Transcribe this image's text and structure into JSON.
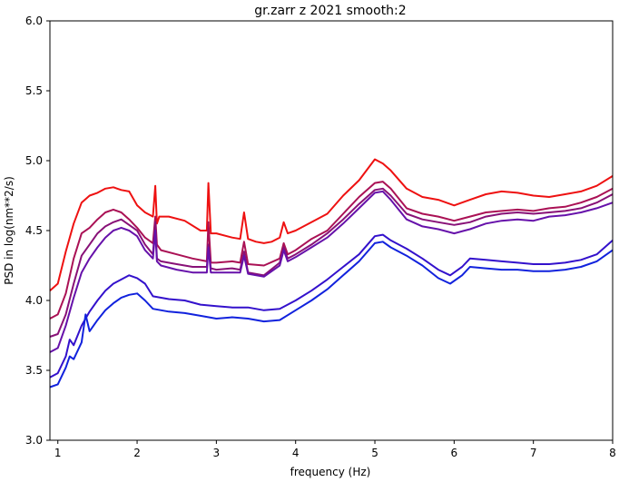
{
  "chart_data": {
    "type": "line",
    "title": "gr.zarr z 2021 smooth:2",
    "xlabel": "frequency (Hz)",
    "ylabel": "PSD in log(nm**2/s)",
    "xlim": [
      0.9,
      8.0
    ],
    "ylim": [
      3.0,
      6.0
    ],
    "xticks": [
      "1",
      "2",
      "3",
      "4",
      "5",
      "6",
      "7",
      "8"
    ],
    "yticks": [
      "3.0",
      "3.5",
      "4.0",
      "4.5",
      "5.0",
      "5.5",
      "6.0"
    ],
    "grid": false,
    "legend": "none",
    "series": [
      {
        "color": "#ee1111",
        "x": [
          0.9,
          1.0,
          1.1,
          1.2,
          1.3,
          1.4,
          1.5,
          1.6,
          1.7,
          1.8,
          1.9,
          2.0,
          2.1,
          2.2,
          2.23,
          2.25,
          2.28,
          2.4,
          2.6,
          2.8,
          2.88,
          2.9,
          2.93,
          3.0,
          3.2,
          3.3,
          3.35,
          3.4,
          3.5,
          3.6,
          3.7,
          3.8,
          3.85,
          3.9,
          4.0,
          4.2,
          4.4,
          4.6,
          4.8,
          5.0,
          5.1,
          5.2,
          5.4,
          5.6,
          5.8,
          6.0,
          6.2,
          6.4,
          6.6,
          6.8,
          7.0,
          7.2,
          7.4,
          7.6,
          7.8,
          8.0
        ],
        "y": [
          4.07,
          4.12,
          4.35,
          4.55,
          4.7,
          4.75,
          4.77,
          4.8,
          4.81,
          4.79,
          4.78,
          4.68,
          4.63,
          4.6,
          4.82,
          4.55,
          4.6,
          4.6,
          4.57,
          4.5,
          4.5,
          4.84,
          4.48,
          4.48,
          4.45,
          4.44,
          4.63,
          4.44,
          4.42,
          4.41,
          4.42,
          4.45,
          4.56,
          4.48,
          4.5,
          4.56,
          4.62,
          4.75,
          4.86,
          5.01,
          4.98,
          4.93,
          4.8,
          4.74,
          4.72,
          4.68,
          4.72,
          4.76,
          4.78,
          4.77,
          4.75,
          4.74,
          4.76,
          4.78,
          4.82,
          4.89
        ]
      },
      {
        "color": "#aa1155",
        "x": [
          0.9,
          1.0,
          1.1,
          1.2,
          1.3,
          1.4,
          1.5,
          1.6,
          1.7,
          1.8,
          1.9,
          2.0,
          2.1,
          2.2,
          2.23,
          2.25,
          2.3,
          2.5,
          2.7,
          2.88,
          2.9,
          2.93,
          3.0,
          3.2,
          3.3,
          3.35,
          3.4,
          3.6,
          3.8,
          3.85,
          3.9,
          4.0,
          4.2,
          4.4,
          4.6,
          4.8,
          5.0,
          5.1,
          5.2,
          5.4,
          5.6,
          5.8,
          6.0,
          6.2,
          6.4,
          6.6,
          6.8,
          7.0,
          7.2,
          7.4,
          7.6,
          7.8,
          8.0
        ],
        "y": [
          3.87,
          3.9,
          4.05,
          4.3,
          4.48,
          4.52,
          4.58,
          4.63,
          4.65,
          4.63,
          4.58,
          4.52,
          4.45,
          4.41,
          4.6,
          4.4,
          4.36,
          4.33,
          4.3,
          4.28,
          4.56,
          4.27,
          4.27,
          4.28,
          4.27,
          4.42,
          4.26,
          4.25,
          4.3,
          4.41,
          4.33,
          4.36,
          4.44,
          4.5,
          4.62,
          4.74,
          4.84,
          4.85,
          4.8,
          4.66,
          4.62,
          4.6,
          4.57,
          4.6,
          4.63,
          4.64,
          4.65,
          4.64,
          4.66,
          4.67,
          4.7,
          4.74,
          4.8
        ]
      },
      {
        "color": "#881177",
        "x": [
          0.9,
          1.0,
          1.1,
          1.2,
          1.3,
          1.4,
          1.5,
          1.6,
          1.7,
          1.8,
          1.9,
          2.0,
          2.1,
          2.2,
          2.23,
          2.25,
          2.3,
          2.5,
          2.7,
          2.88,
          2.9,
          2.93,
          3.0,
          3.2,
          3.3,
          3.35,
          3.4,
          3.6,
          3.8,
          3.85,
          3.9,
          4.0,
          4.2,
          4.4,
          4.6,
          4.8,
          5.0,
          5.1,
          5.2,
          5.4,
          5.6,
          5.8,
          6.0,
          6.2,
          6.4,
          6.6,
          6.8,
          7.0,
          7.2,
          7.4,
          7.6,
          7.8,
          8.0
        ],
        "y": [
          3.74,
          3.76,
          3.9,
          4.12,
          4.32,
          4.4,
          4.48,
          4.53,
          4.56,
          4.58,
          4.54,
          4.5,
          4.4,
          4.33,
          4.56,
          4.3,
          4.28,
          4.26,
          4.24,
          4.24,
          4.4,
          4.23,
          4.22,
          4.23,
          4.22,
          4.35,
          4.2,
          4.18,
          4.27,
          4.38,
          4.3,
          4.33,
          4.4,
          4.48,
          4.58,
          4.69,
          4.79,
          4.8,
          4.75,
          4.62,
          4.58,
          4.56,
          4.54,
          4.56,
          4.6,
          4.62,
          4.63,
          4.62,
          4.63,
          4.64,
          4.66,
          4.7,
          4.76
        ]
      },
      {
        "color": "#6611aa",
        "x": [
          0.9,
          1.0,
          1.1,
          1.2,
          1.3,
          1.4,
          1.5,
          1.6,
          1.7,
          1.8,
          1.9,
          2.0,
          2.1,
          2.2,
          2.23,
          2.25,
          2.3,
          2.5,
          2.7,
          2.88,
          2.9,
          2.93,
          3.0,
          3.2,
          3.3,
          3.35,
          3.4,
          3.6,
          3.8,
          3.85,
          3.9,
          4.0,
          4.2,
          4.4,
          4.6,
          4.8,
          5.0,
          5.1,
          5.2,
          5.4,
          5.6,
          5.8,
          6.0,
          6.2,
          6.4,
          6.6,
          6.8,
          7.0,
          7.2,
          7.4,
          7.6,
          7.8,
          8.0
        ],
        "y": [
          3.63,
          3.66,
          3.82,
          4.02,
          4.2,
          4.3,
          4.38,
          4.45,
          4.5,
          4.52,
          4.5,
          4.46,
          4.36,
          4.3,
          4.5,
          4.28,
          4.25,
          4.22,
          4.2,
          4.2,
          4.38,
          4.2,
          4.2,
          4.2,
          4.2,
          4.32,
          4.19,
          4.17,
          4.25,
          4.36,
          4.28,
          4.31,
          4.38,
          4.45,
          4.55,
          4.66,
          4.77,
          4.78,
          4.72,
          4.58,
          4.53,
          4.51,
          4.48,
          4.51,
          4.55,
          4.57,
          4.58,
          4.57,
          4.6,
          4.61,
          4.63,
          4.66,
          4.7
        ]
      },
      {
        "color": "#3311cc",
        "x": [
          0.9,
          1.0,
          1.1,
          1.15,
          1.2,
          1.3,
          1.4,
          1.5,
          1.6,
          1.7,
          1.8,
          1.9,
          2.0,
          2.1,
          2.2,
          2.4,
          2.6,
          2.8,
          3.0,
          3.2,
          3.4,
          3.6,
          3.8,
          4.0,
          4.2,
          4.4,
          4.6,
          4.8,
          5.0,
          5.1,
          5.2,
          5.4,
          5.6,
          5.8,
          5.95,
          6.1,
          6.2,
          6.4,
          6.6,
          6.8,
          7.0,
          7.2,
          7.4,
          7.6,
          7.8,
          8.0
        ],
        "y": [
          3.45,
          3.48,
          3.6,
          3.72,
          3.68,
          3.82,
          3.92,
          4.0,
          4.07,
          4.12,
          4.15,
          4.18,
          4.16,
          4.12,
          4.03,
          4.01,
          4.0,
          3.97,
          3.96,
          3.95,
          3.95,
          3.93,
          3.94,
          4.0,
          4.07,
          4.15,
          4.24,
          4.33,
          4.46,
          4.47,
          4.43,
          4.37,
          4.3,
          4.22,
          4.18,
          4.24,
          4.3,
          4.29,
          4.28,
          4.27,
          4.26,
          4.26,
          4.27,
          4.29,
          4.33,
          4.43
        ]
      },
      {
        "color": "#1122dd",
        "x": [
          0.9,
          1.0,
          1.1,
          1.15,
          1.2,
          1.3,
          1.35,
          1.4,
          1.5,
          1.6,
          1.7,
          1.8,
          1.9,
          2.0,
          2.1,
          2.2,
          2.4,
          2.6,
          2.8,
          3.0,
          3.2,
          3.4,
          3.6,
          3.8,
          4.0,
          4.2,
          4.4,
          4.6,
          4.8,
          5.0,
          5.1,
          5.2,
          5.4,
          5.6,
          5.8,
          5.95,
          6.1,
          6.2,
          6.4,
          6.6,
          6.8,
          7.0,
          7.2,
          7.4,
          7.6,
          7.8,
          8.0
        ],
        "y": [
          3.38,
          3.4,
          3.52,
          3.6,
          3.58,
          3.7,
          3.9,
          3.78,
          3.86,
          3.93,
          3.98,
          4.02,
          4.04,
          4.05,
          4.0,
          3.94,
          3.92,
          3.91,
          3.89,
          3.87,
          3.88,
          3.87,
          3.85,
          3.86,
          3.93,
          4.0,
          4.08,
          4.18,
          4.28,
          4.41,
          4.42,
          4.38,
          4.32,
          4.25,
          4.16,
          4.12,
          4.18,
          4.24,
          4.23,
          4.22,
          4.22,
          4.21,
          4.21,
          4.22,
          4.24,
          4.28,
          4.36
        ]
      }
    ]
  }
}
